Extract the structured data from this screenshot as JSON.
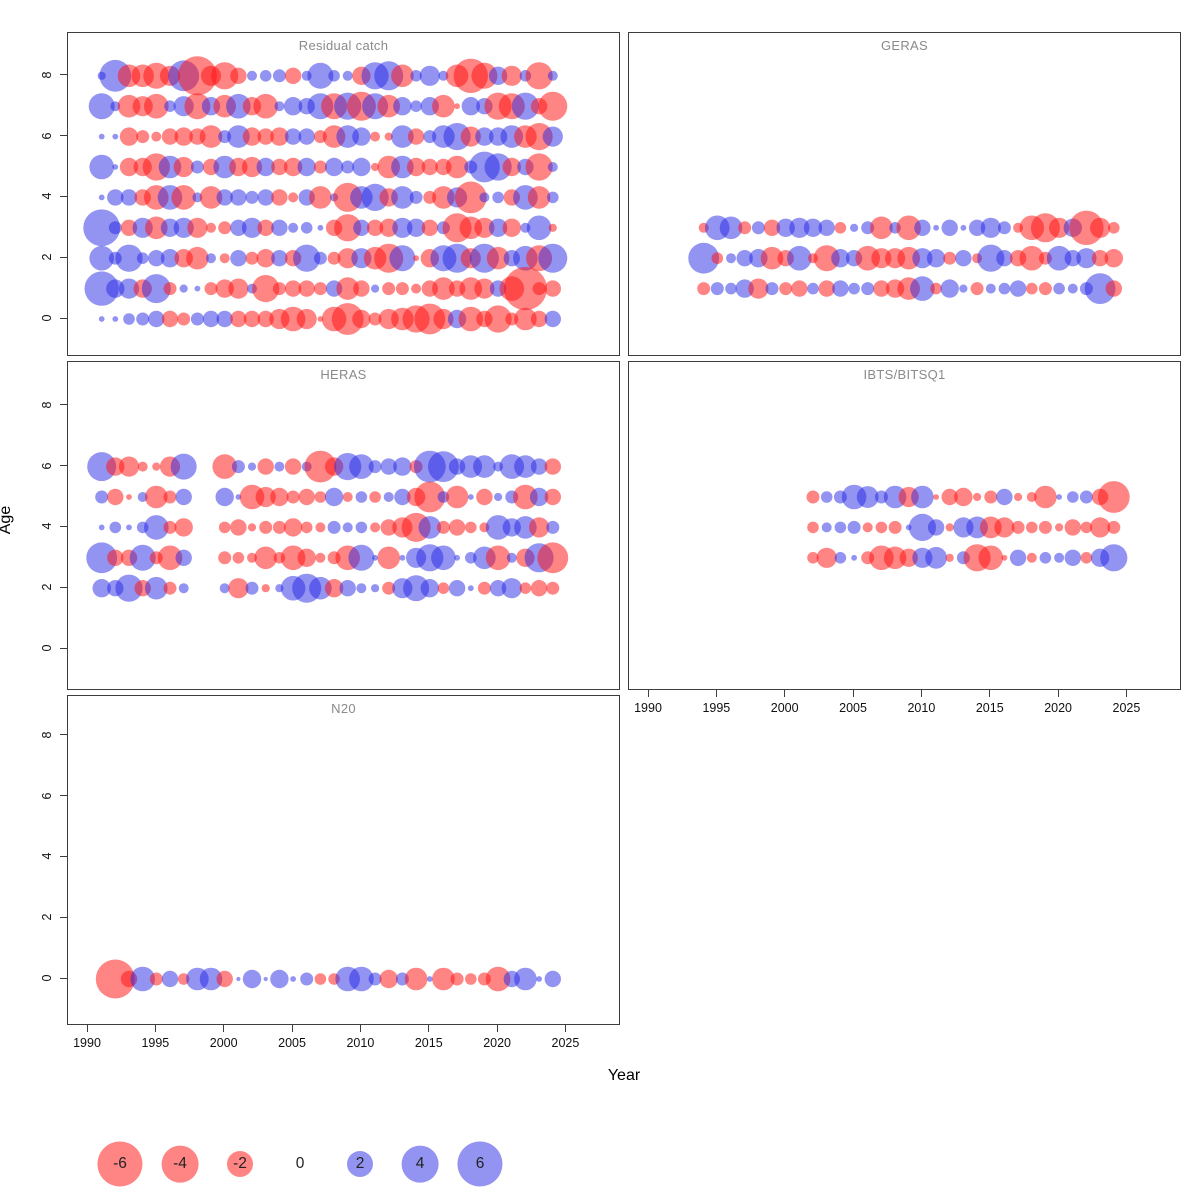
{
  "figure": {
    "xlabel": "Year",
    "ylabel": "Age"
  },
  "chart_data": {
    "type": "scatter",
    "subtype": "bubble-residual-matrix",
    "xlabel": "Year",
    "ylabel": "Age",
    "x_ticks": [
      1990,
      1995,
      2000,
      2005,
      2010,
      2015,
      2020,
      2025
    ],
    "y_ticks": [
      0,
      2,
      4,
      6,
      8
    ],
    "xlim": [
      1988.5,
      2026.5
    ],
    "ylim": [
      -1.3,
      9.3
    ],
    "grid": false,
    "size_encoding": "circle radius proportional to sqrt(|residual|)",
    "colors": {
      "negative": "#FC8181",
      "positive": "#8A8AEF",
      "negative_rgba": "rgba(255,20,20,0.52)",
      "positive_rgba": "rgba(40,40,230,0.5)",
      "title_gray": "#8a8a8a"
    },
    "legend": {
      "values": [
        -6,
        -4,
        -2,
        0,
        2,
        4,
        6
      ],
      "labels": [
        "-6",
        "-4",
        "-2",
        "0",
        "2",
        "4",
        "6"
      ],
      "position": "bottom-left"
    },
    "panels": [
      {
        "title": "Residual catch",
        "year_start": 1991,
        "series": [
          {
            "age": 8,
            "values": [
              0.2,
              3,
              -1.5,
              -1.5,
              -2,
              -1.2,
              2.8,
              -4.5,
              -1.2,
              -2.2,
              -0.8,
              0.3,
              0.4,
              0.5,
              -0.8,
              0.3,
              2,
              0.4,
              0.3,
              -1,
              2.2,
              2.5,
              -1.5,
              0.4,
              1.2,
              0.3,
              -1.5,
              -3.5,
              -2,
              1,
              -1.2,
              0.4,
              -2.2,
              0.3
            ]
          },
          {
            "age": 7,
            "values": [
              2,
              0.3,
              -1.5,
              -1.2,
              -1.8,
              0.4,
              1.2,
              -2,
              1,
              -1.5,
              1.8,
              -1,
              -1.8,
              0.3,
              1,
              0.8,
              2,
              -2,
              2.2,
              -2.5,
              2,
              -1.5,
              1,
              0.4,
              1,
              -1.5,
              -0.1,
              1,
              0.8,
              -2.2,
              -2,
              2.2,
              -0.8,
              -2.5
            ]
          },
          {
            "age": 6,
            "values": [
              0.1,
              0.1,
              -1,
              -0.5,
              -0.3,
              -0.8,
              -1,
              -0.8,
              -1.5,
              0.5,
              1.5,
              -1,
              -0.8,
              -1,
              0.8,
              0.8,
              -0.5,
              -1.5,
              1.5,
              1,
              -0.3,
              -0.2,
              1.5,
              -0.8,
              0.5,
              1.5,
              2.2,
              -1.2,
              1,
              1,
              1.5,
              -1.5,
              -2.2,
              1.2
            ]
          },
          {
            "age": 5,
            "values": [
              1.8,
              0.1,
              -1,
              -1,
              -2.2,
              1.5,
              -1.2,
              0.5,
              -0.8,
              1.5,
              -1,
              -1.2,
              1,
              -0.8,
              -1,
              1,
              -0.5,
              1,
              0.5,
              1,
              -0.2,
              -1.5,
              1.5,
              -1,
              -0.8,
              -0.8,
              -1.5,
              0.5,
              2.8,
              2.2,
              -1,
              0.8,
              -2.2,
              0.3
            ]
          },
          {
            "age": 4,
            "values": [
              0.1,
              0.8,
              0.8,
              -0.8,
              -1.8,
              1.8,
              -1.8,
              0.3,
              -1.5,
              0.8,
              0.8,
              0.5,
              0.8,
              -0.8,
              -0.3,
              0.8,
              -1.5,
              0.2,
              -2.5,
              1.5,
              2.2,
              -1,
              1.5,
              0.5,
              -0.5,
              -1.5,
              1.2,
              -3,
              0.3,
              0.4,
              -0.8,
              1.8,
              -1.5,
              0.4
            ]
          },
          {
            "age": 3,
            "values": [
              4,
              0.5,
              -0.8,
              1.2,
              -1.5,
              1,
              1.2,
              -1.2,
              -0.3,
              -0.5,
              0.8,
              1.2,
              -0.8,
              0.8,
              0.3,
              0.4,
              0.1,
              -0.8,
              -2.2,
              0.8,
              -0.8,
              -1,
              1.2,
              1,
              -0.8,
              0.5,
              -2.5,
              -1.5,
              -1.2,
              1,
              -1,
              0.3,
              1.8,
              -0.2
            ]
          },
          {
            "age": 2,
            "values": [
              1.8,
              0.5,
              2.2,
              0.4,
              0.8,
              1,
              -1,
              -1.5,
              0.3,
              -0.3,
              0.8,
              -0.5,
              -1,
              0.8,
              -0.8,
              2.2,
              0.5,
              -0.5,
              -1.2,
              1.2,
              -1.5,
              -2.5,
              2,
              -0.1,
              -1,
              2,
              2.5,
              -1.2,
              2.5,
              -1.5,
              0.8,
              1.8,
              -2,
              2.5
            ]
          },
          {
            "age": 1,
            "values": [
              3.5,
              1,
              1.2,
              -1,
              2.5,
              -0.5,
              0.2,
              0.1,
              -0.5,
              -1,
              -1.2,
              0.3,
              -2.2,
              -0.5,
              -0.8,
              -0.8,
              -0.5,
              0.8,
              -1.5,
              -0.8,
              0.2,
              -0.5,
              -0.5,
              -0.3,
              -0.8,
              -1.5,
              -0.8,
              -1.5,
              -1.2,
              0.8,
              -1.8,
              -5.5,
              -0.5,
              -0.8
            ]
          },
          {
            "age": 0,
            "values": [
              0.1,
              0.1,
              0.4,
              0.5,
              0.8,
              -0.8,
              -0.5,
              0.5,
              0.8,
              0.8,
              -0.8,
              -0.8,
              -0.8,
              -1.2,
              -1.8,
              -1.2,
              -0.1,
              -1.8,
              -3,
              -1,
              -0.5,
              -1.2,
              -1.5,
              -2.2,
              -2.8,
              -1.2,
              1,
              -1.8,
              -0.8,
              -2.2,
              -0.5,
              -1.5,
              -0.8,
              0.8
            ]
          }
        ]
      },
      {
        "title": "GERAS",
        "year_start": 1994,
        "series": [
          {
            "age": 3,
            "values": [
              -0.3,
              1.8,
              1.5,
              -0.5,
              0.5,
              -0.8,
              1,
              1.2,
              1,
              0.8,
              -0.4,
              0.2,
              0.5,
              -1.5,
              0.4,
              -1.8,
              0.8,
              0.1,
              0.8,
              0.1,
              0.8,
              1.2,
              0.5,
              -0.3,
              -1.8,
              -2.5,
              -1.2,
              1,
              -3.5,
              -1.2,
              -0.4
            ]
          },
          {
            "age": 2,
            "values": [
              2.8,
              -0.4,
              0.3,
              0.8,
              1,
              -1.5,
              -0.8,
              1.8,
              -0.3,
              -2,
              1,
              0.8,
              -1.8,
              -1.2,
              -1.2,
              -1.5,
              1.2,
              1,
              -0.5,
              0.8,
              -0.3,
              2.2,
              0.8,
              -0.8,
              -1.8,
              -0.5,
              1.8,
              0.8,
              1.2,
              -0.8,
              -1
            ]
          },
          {
            "age": 1,
            "values": [
              -0.5,
              0.5,
              0.4,
              1,
              -1.2,
              0.5,
              -0.5,
              -0.8,
              0.4,
              -0.8,
              0.8,
              0.4,
              0.5,
              -0.8,
              -1,
              -1.5,
              1.8,
              -0.4,
              1,
              0.2,
              -0.5,
              0.3,
              0.4,
              0.8,
              -0.4,
              -0.5,
              0.4,
              0.3,
              0.5,
              2.8,
              -0.8
            ]
          }
        ]
      },
      {
        "title": "HERAS",
        "year_start": 1991,
        "series": [
          {
            "age": 6,
            "values": [
              2.5,
              -1,
              -1.2,
              -0.3,
              -0.2,
              -1.2,
              2,
              null,
              null,
              -1.8,
              0.5,
              0.2,
              -0.8,
              0.3,
              -0.8,
              0.3,
              -3,
              -1,
              2.2,
              1.8,
              0.5,
              0.8,
              1,
              -0.5,
              3,
              2.8,
              0.8,
              1.5,
              1.5,
              0.3,
              1.8,
              1.5,
              0.8,
              -0.8
            ]
          },
          {
            "age": 5,
            "values": [
              0.5,
              -0.8,
              -0.1,
              0.3,
              -1.5,
              -0.5,
              0.8,
              null,
              null,
              1,
              0.1,
              -1.8,
              -1.2,
              -1,
              -0.5,
              -0.8,
              -0.4,
              1,
              -0.3,
              0.4,
              -0.4,
              0.3,
              0.8,
              -1,
              -2.8,
              0.4,
              -1.5,
              0.1,
              -0.8,
              0.2,
              0.5,
              -1.8,
              1,
              -0.8
            ]
          },
          {
            "age": 4,
            "values": [
              0.1,
              0.4,
              0.1,
              0.4,
              1.8,
              -0.5,
              -1,
              null,
              null,
              -0.4,
              -0.8,
              -0.2,
              -0.5,
              -0.5,
              -1,
              -0.4,
              -0.3,
              0.5,
              0.3,
              0.4,
              -0.3,
              -0.8,
              -1.2,
              -2.5,
              1.5,
              -0.5,
              -0.8,
              -0.4,
              -0.3,
              1.8,
              1,
              1.5,
              -1.2,
              0.5
            ]
          },
          {
            "age": 3,
            "values": [
              2.8,
              -0.8,
              -0.8,
              2,
              -0.5,
              -1.8,
              0.8,
              null,
              null,
              -0.5,
              -0.4,
              -0.3,
              -1.5,
              -0.4,
              -1.8,
              -1,
              -0.3,
              -0.5,
              -1.8,
              2,
              0.1,
              -1.5,
              0.1,
              1.2,
              2.2,
              1.8,
              0.1,
              0.4,
              1.5,
              -1.8,
              0.3,
              -1,
              2.5,
              -2.8
            ]
          },
          {
            "age": 2,
            "values": [
              1,
              0.8,
              2.2,
              -0.8,
              1.5,
              -0.5,
              0.3,
              null,
              null,
              0.3,
              -1.2,
              0.5,
              -0.2,
              0.2,
              1.8,
              2.5,
              1.5,
              -1,
              0.8,
              0.3,
              0.2,
              -0.5,
              1.2,
              2,
              1,
              -0.4,
              0.8,
              0.1,
              -0.5,
              0.8,
              1.2,
              -0.4,
              -0.8,
              -0.5
            ]
          }
        ]
      },
      {
        "title": "IBTS/BITSQ1",
        "year_start": 2002,
        "series": [
          {
            "age": 5,
            "values": [
              -0.5,
              0.4,
              0.5,
              1.8,
              1.4,
              0.5,
              1.5,
              -1.2,
              1.5,
              -0.1,
              -0.8,
              -1,
              -0.2,
              -0.5,
              0.8,
              -0.2,
              -0.3,
              -1.5,
              0.1,
              0.4,
              0.5,
              -0.8,
              -3
            ]
          },
          {
            "age": 4,
            "values": [
              -0.4,
              0.3,
              0.4,
              0.5,
              -0.3,
              -0.4,
              -0.5,
              0.1,
              2.2,
              0.8,
              -0.2,
              1.2,
              1.4,
              -1.4,
              -1.2,
              -0.5,
              -0.4,
              -0.5,
              -0.2,
              -0.8,
              -0.4,
              -1.2,
              -0.5
            ]
          },
          {
            "age": 3,
            "values": [
              -0.4,
              -1.2,
              0.4,
              0.1,
              -0.5,
              -1.8,
              -1.5,
              -1,
              1.2,
              1.4,
              -0.2,
              0.5,
              -2.2,
              -1.8,
              -0.1,
              0.8,
              -0.3,
              0.4,
              0.3,
              0.8,
              -0.4,
              1,
              2.2
            ]
          }
        ]
      },
      {
        "title": "N20",
        "year_start": 1992,
        "series": [
          {
            "age": 0,
            "values": [
              -4.5,
              -0.8,
              1.8,
              -0.5,
              0.8,
              -0.4,
              1.5,
              1.5,
              -0.8,
              0.05,
              1,
              0.05,
              1,
              0.1,
              0.5,
              -0.4,
              -0.4,
              1.8,
              1.8,
              0.5,
              -1,
              0.5,
              -1.5,
              0.1,
              -1.5,
              -0.5,
              -0.4,
              -0.5,
              -1.8,
              0.8,
              1.5,
              0.1,
              0.8
            ]
          }
        ]
      }
    ]
  }
}
